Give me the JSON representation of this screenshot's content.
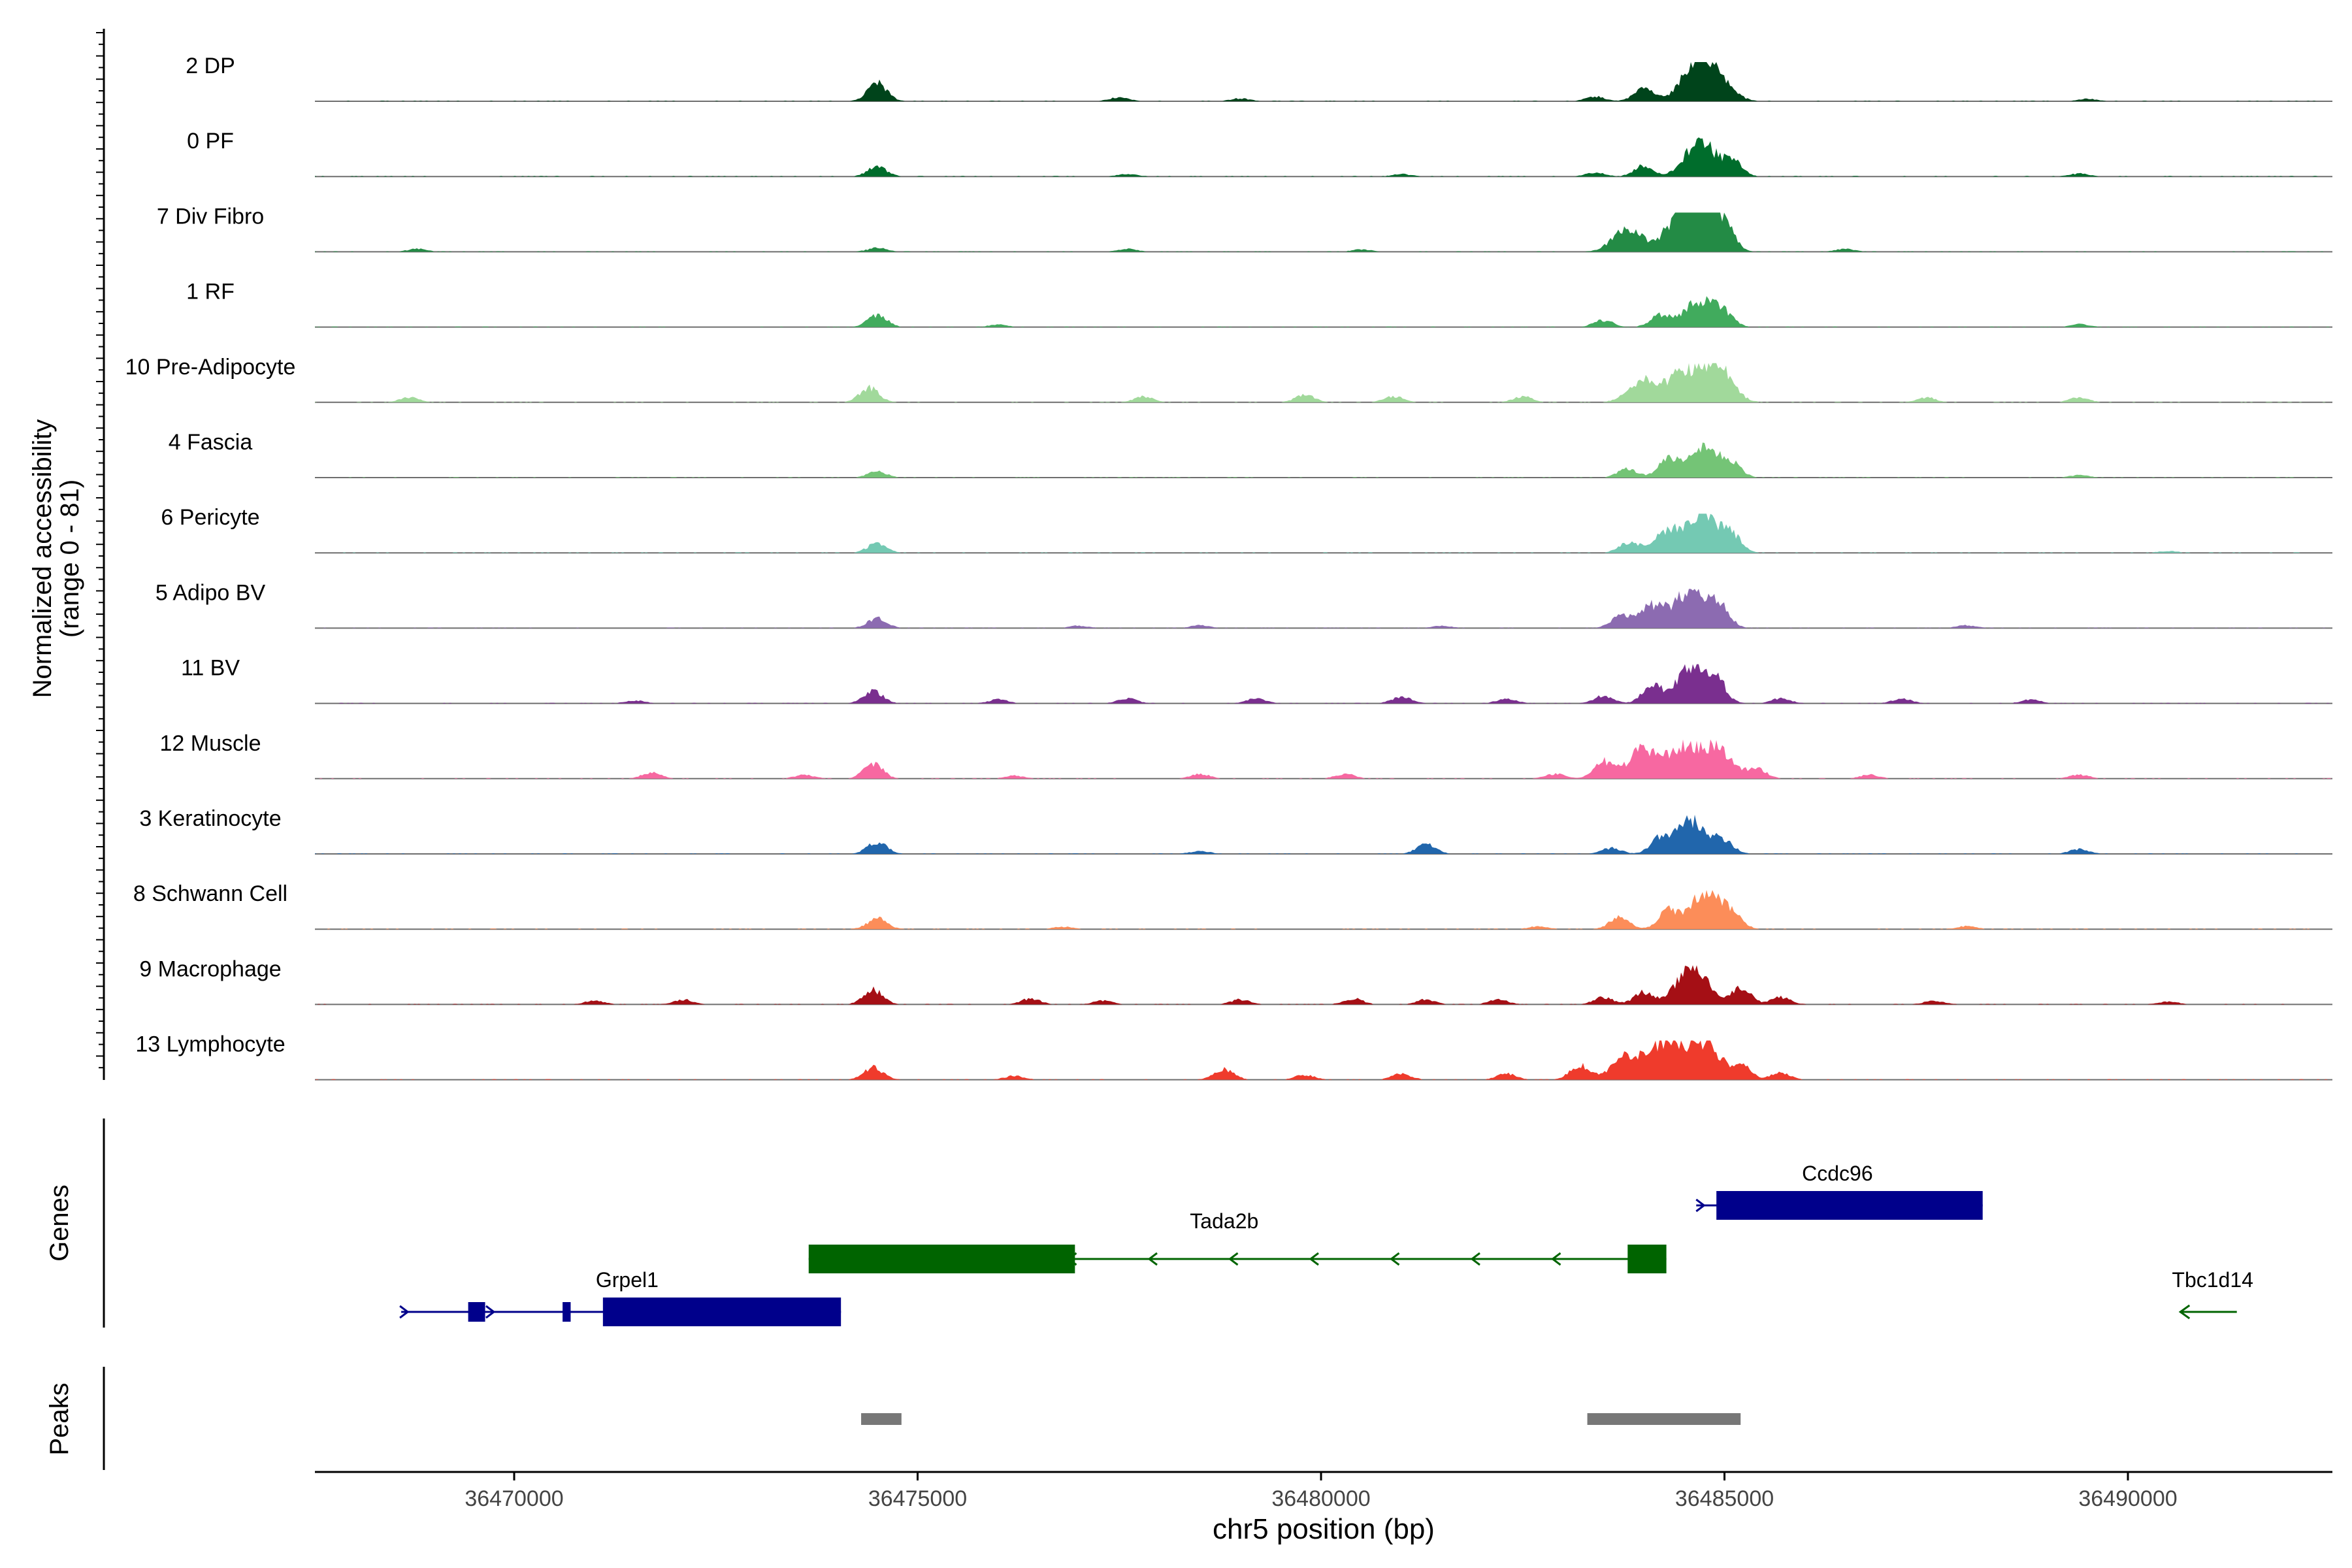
{
  "chart_data": {
    "type": "area",
    "title": "",
    "chromosome": "chr5",
    "xlabel": "chr5 position (bp)",
    "xlim": [
      36467500,
      36492500
    ],
    "x_ticks": [
      36470000,
      36475000,
      36480000,
      36485000,
      36490000
    ],
    "x_tick_labels": [
      "36470000",
      "36475000",
      "36480000",
      "36485000",
      "36490000"
    ],
    "ylabel": "Normalized accessibility",
    "ylabel_range": "(range 0 - 81)",
    "ylim": [
      0,
      81
    ],
    "genes_label": "Genes",
    "peaks_label": "Peaks",
    "tracks": [
      {
        "name": "2 DP",
        "color": "#00441b",
        "peaks": [
          [
            36474500,
            38
          ],
          [
            36477500,
            8
          ],
          [
            36479000,
            6
          ],
          [
            36483400,
            10
          ],
          [
            36484000,
            28
          ],
          [
            36484650,
            78
          ],
          [
            36484900,
            45
          ],
          [
            36489500,
            5
          ]
        ]
      },
      {
        "name": "0 PF",
        "color": "#006d2c",
        "peaks": [
          [
            36474500,
            20
          ],
          [
            36477600,
            5
          ],
          [
            36481000,
            5
          ],
          [
            36483400,
            8
          ],
          [
            36484000,
            22
          ],
          [
            36484700,
            72
          ],
          [
            36485100,
            30
          ],
          [
            36489400,
            6
          ]
        ]
      },
      {
        "name": "7 Div Fibro",
        "color": "#238b45",
        "peaks": [
          [
            36468800,
            6
          ],
          [
            36474500,
            8
          ],
          [
            36477600,
            6
          ],
          [
            36480500,
            5
          ],
          [
            36483800,
            45
          ],
          [
            36484450,
            70
          ],
          [
            36484750,
            78
          ],
          [
            36485000,
            40
          ],
          [
            36486500,
            6
          ]
        ]
      },
      {
        "name": "1 RF",
        "color": "#41ab5d",
        "peaks": [
          [
            36474500,
            25
          ],
          [
            36476000,
            5
          ],
          [
            36483500,
            14
          ],
          [
            36484200,
            25
          ],
          [
            36484700,
            56
          ],
          [
            36485000,
            22
          ],
          [
            36489400,
            6
          ]
        ]
      },
      {
        "name": "10 Pre-Adipocyte",
        "color": "#a1d99b",
        "peaks": [
          [
            36468700,
            10
          ],
          [
            36474400,
            30
          ],
          [
            36477800,
            12
          ],
          [
            36479800,
            15
          ],
          [
            36480900,
            12
          ],
          [
            36482500,
            12
          ],
          [
            36484000,
            45
          ],
          [
            36484500,
            60
          ],
          [
            36484900,
            75
          ],
          [
            36487500,
            10
          ],
          [
            36489400,
            10
          ]
        ]
      },
      {
        "name": "4 Fascia",
        "color": "#74c476",
        "peaks": [
          [
            36474500,
            12
          ],
          [
            36483800,
            18
          ],
          [
            36484300,
            40
          ],
          [
            36484750,
            60
          ],
          [
            36485100,
            25
          ],
          [
            36489400,
            5
          ]
        ]
      },
      {
        "name": "6 Pericyte",
        "color": "#74c9b3",
        "peaks": [
          [
            36474500,
            20
          ],
          [
            36483800,
            20
          ],
          [
            36484300,
            45
          ],
          [
            36484750,
            75
          ],
          [
            36485100,
            30
          ],
          [
            36490500,
            4
          ]
        ]
      },
      {
        "name": "5 Adipo BV",
        "color": "#8c6bb1",
        "peaks": [
          [
            36474500,
            20
          ],
          [
            36477000,
            5
          ],
          [
            36478500,
            6
          ],
          [
            36481500,
            5
          ],
          [
            36483700,
            20
          ],
          [
            36484100,
            45
          ],
          [
            36484600,
            80
          ],
          [
            36484950,
            40
          ],
          [
            36488000,
            6
          ]
        ]
      },
      {
        "name": "11 BV",
        "color": "#7a2f8f",
        "peaks": [
          [
            36471500,
            6
          ],
          [
            36474450,
            25
          ],
          [
            36476000,
            8
          ],
          [
            36477600,
            10
          ],
          [
            36479200,
            10
          ],
          [
            36481000,
            14
          ],
          [
            36482300,
            10
          ],
          [
            36483500,
            15
          ],
          [
            36484100,
            35
          ],
          [
            36484600,
            80
          ],
          [
            36484900,
            40
          ],
          [
            36485700,
            10
          ],
          [
            36487200,
            10
          ],
          [
            36488800,
            8
          ]
        ]
      },
      {
        "name": "12 Muscle",
        "color": "#f768a1",
        "peaks": [
          [
            36471700,
            12
          ],
          [
            36473600,
            8
          ],
          [
            36474450,
            30
          ],
          [
            36476200,
            6
          ],
          [
            36478500,
            10
          ],
          [
            36480300,
            10
          ],
          [
            36482900,
            10
          ],
          [
            36483500,
            35
          ],
          [
            36484000,
            60
          ],
          [
            36484500,
            60
          ],
          [
            36484900,
            60
          ],
          [
            36485400,
            20
          ],
          [
            36486800,
            8
          ],
          [
            36489400,
            8
          ]
        ]
      },
      {
        "name": "3 Keratinocyte",
        "color": "#2166ac",
        "peaks": [
          [
            36474500,
            25
          ],
          [
            36478500,
            6
          ],
          [
            36481300,
            20
          ],
          [
            36483600,
            12
          ],
          [
            36484200,
            30
          ],
          [
            36484600,
            70
          ],
          [
            36485000,
            25
          ],
          [
            36489400,
            10
          ]
        ]
      },
      {
        "name": "8 Schwann Cell",
        "color": "#fc8d59",
        "peaks": [
          [
            36474500,
            22
          ],
          [
            36476800,
            5
          ],
          [
            36482700,
            6
          ],
          [
            36483700,
            25
          ],
          [
            36484300,
            35
          ],
          [
            36484750,
            80
          ],
          [
            36485100,
            30
          ],
          [
            36488000,
            6
          ]
        ]
      },
      {
        "name": "9 Macrophage",
        "color": "#a50f15",
        "peaks": [
          [
            36471000,
            8
          ],
          [
            36472100,
            10
          ],
          [
            36474450,
            30
          ],
          [
            36476400,
            12
          ],
          [
            36477300,
            8
          ],
          [
            36479000,
            10
          ],
          [
            36480400,
            12
          ],
          [
            36481300,
            10
          ],
          [
            36482200,
            10
          ],
          [
            36483500,
            15
          ],
          [
            36484000,
            25
          ],
          [
            36484600,
            80
          ],
          [
            36485200,
            35
          ],
          [
            36485700,
            15
          ],
          [
            36487600,
            8
          ],
          [
            36490500,
            6
          ]
        ]
      },
      {
        "name": "13 Lymphocyte",
        "color": "#ef3b2c",
        "peaks": [
          [
            36474450,
            25
          ],
          [
            36476200,
            8
          ],
          [
            36478800,
            22
          ],
          [
            36479800,
            10
          ],
          [
            36481000,
            12
          ],
          [
            36482300,
            12
          ],
          [
            36483200,
            30
          ],
          [
            36483800,
            50
          ],
          [
            36484300,
            80
          ],
          [
            36484750,
            75
          ],
          [
            36485200,
            30
          ],
          [
            36485700,
            15
          ]
        ]
      }
    ],
    "genes": [
      {
        "name": "Grpel1",
        "strand": "+",
        "color": "#00008b",
        "row": 3,
        "start": 36468600,
        "end": 36474050,
        "exons": [
          [
            36469430,
            36469640
          ],
          [
            36470600,
            36470700
          ],
          [
            36471100,
            36474050
          ]
        ],
        "label_pos": 36471400
      },
      {
        "name": "Tada2b",
        "strand": "-",
        "color": "#006400",
        "row": 2,
        "start": 36473650,
        "end": 36484280,
        "exons": [
          [
            36473650,
            36476950
          ],
          [
            36483800,
            36484280
          ]
        ],
        "label_pos": 36478800
      },
      {
        "name": "Ccdc96",
        "strand": "+",
        "color": "#00008b",
        "row": 1,
        "start": 36484650,
        "end": 36488200,
        "exons": [
          [
            36484900,
            36488200
          ]
        ],
        "label_pos": 36486400
      },
      {
        "name": "Tbc1d14",
        "strand": "-",
        "color": "#006400",
        "row": 3,
        "start": 36490650,
        "end": 36491350,
        "exons": [],
        "label_pos": 36491050
      }
    ],
    "peak_regions": [
      [
        36474300,
        36474800
      ],
      [
        36483300,
        36485200
      ]
    ],
    "peak_color": "#777777"
  }
}
